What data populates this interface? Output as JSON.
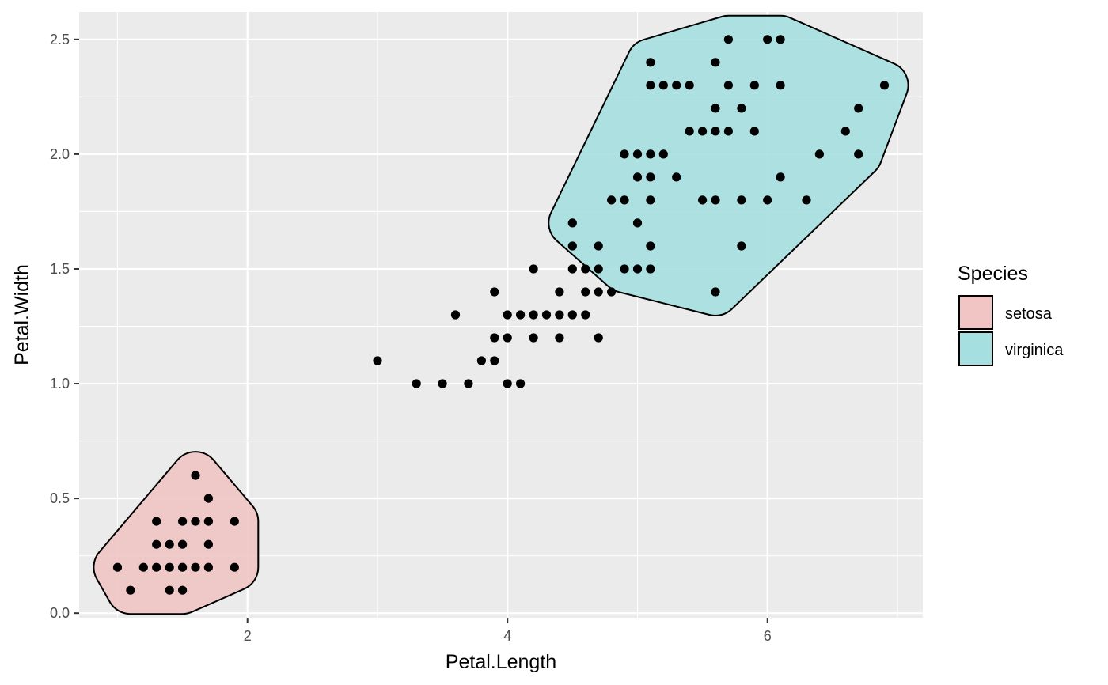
{
  "chart_data": {
    "type": "scatter",
    "title": "",
    "xlabel": "Petal.Length",
    "ylabel": "Petal.Width",
    "xlim": [
      0.705,
      7.195
    ],
    "ylim": [
      -0.02,
      2.62
    ],
    "x_ticks": [
      2,
      4,
      6
    ],
    "y_ticks": [
      0.0,
      0.5,
      1.0,
      1.5,
      2.0,
      2.5
    ],
    "x_tick_labels": [
      "2",
      "4",
      "6"
    ],
    "y_tick_labels": [
      "0.0",
      "0.5",
      "1.0",
      "1.5",
      "2.0",
      "2.5"
    ],
    "grid": true,
    "panel_background": "#ebebeb",
    "point_color": "#000000",
    "legend": {
      "title": "Species",
      "placement": "right",
      "items": [
        {
          "label": "setosa",
          "fill": "#f0c5c3"
        },
        {
          "label": "virginica",
          "fill": "#a6dfe0"
        }
      ]
    },
    "hulls": [
      {
        "name": "setosa",
        "fill": "#f0c5c3",
        "outline": [
          [
            1.0,
            0.2
          ],
          [
            1.1,
            0.1
          ],
          [
            1.5,
            0.1
          ],
          [
            1.9,
            0.2
          ],
          [
            1.9,
            0.4
          ],
          [
            1.6,
            0.6
          ],
          [
            1.3,
            0.4
          ]
        ]
      },
      {
        "name": "virginica",
        "fill": "#a6dfe0",
        "outline": [
          [
            4.5,
            1.7
          ],
          [
            4.9,
            1.5
          ],
          [
            5.6,
            1.4
          ],
          [
            6.7,
            2.0
          ],
          [
            6.9,
            2.3
          ],
          [
            6.1,
            2.5
          ],
          [
            5.7,
            2.5
          ],
          [
            5.1,
            2.4
          ]
        ]
      }
    ],
    "points": [
      {
        "x": 1.4,
        "y": 0.2
      },
      {
        "x": 1.3,
        "y": 0.2
      },
      {
        "x": 1.5,
        "y": 0.2
      },
      {
        "x": 1.7,
        "y": 0.4
      },
      {
        "x": 1.4,
        "y": 0.3
      },
      {
        "x": 1.5,
        "y": 0.1
      },
      {
        "x": 1.6,
        "y": 0.2
      },
      {
        "x": 1.4,
        "y": 0.1
      },
      {
        "x": 1.1,
        "y": 0.1
      },
      {
        "x": 1.2,
        "y": 0.2
      },
      {
        "x": 1.3,
        "y": 0.4
      },
      {
        "x": 1.7,
        "y": 0.3
      },
      {
        "x": 1.0,
        "y": 0.2
      },
      {
        "x": 1.7,
        "y": 0.5
      },
      {
        "x": 1.9,
        "y": 0.2
      },
      {
        "x": 1.6,
        "y": 0.4
      },
      {
        "x": 1.5,
        "y": 0.4
      },
      {
        "x": 1.3,
        "y": 0.3
      },
      {
        "x": 1.6,
        "y": 0.6
      },
      {
        "x": 1.9,
        "y": 0.4
      },
      {
        "x": 1.5,
        "y": 0.3
      },
      {
        "x": 1.7,
        "y": 0.2
      },
      {
        "x": 3.0,
        "y": 1.1
      },
      {
        "x": 3.3,
        "y": 1.0
      },
      {
        "x": 3.5,
        "y": 1.0
      },
      {
        "x": 3.6,
        "y": 1.3
      },
      {
        "x": 3.7,
        "y": 1.0
      },
      {
        "x": 3.8,
        "y": 1.1
      },
      {
        "x": 3.9,
        "y": 1.4
      },
      {
        "x": 3.9,
        "y": 1.2
      },
      {
        "x": 3.9,
        "y": 1.1
      },
      {
        "x": 4.0,
        "y": 1.3
      },
      {
        "x": 4.0,
        "y": 1.2
      },
      {
        "x": 4.0,
        "y": 1.0
      },
      {
        "x": 4.1,
        "y": 1.3
      },
      {
        "x": 4.1,
        "y": 1.0
      },
      {
        "x": 4.2,
        "y": 1.5
      },
      {
        "x": 4.2,
        "y": 1.3
      },
      {
        "x": 4.2,
        "y": 1.2
      },
      {
        "x": 4.3,
        "y": 1.3
      },
      {
        "x": 4.4,
        "y": 1.4
      },
      {
        "x": 4.4,
        "y": 1.3
      },
      {
        "x": 4.4,
        "y": 1.2
      },
      {
        "x": 4.5,
        "y": 1.5
      },
      {
        "x": 4.5,
        "y": 1.3
      },
      {
        "x": 4.5,
        "y": 1.7
      },
      {
        "x": 4.5,
        "y": 1.6
      },
      {
        "x": 4.6,
        "y": 1.5
      },
      {
        "x": 4.6,
        "y": 1.4
      },
      {
        "x": 4.6,
        "y": 1.3
      },
      {
        "x": 4.7,
        "y": 1.6
      },
      {
        "x": 4.7,
        "y": 1.5
      },
      {
        "x": 4.7,
        "y": 1.4
      },
      {
        "x": 4.7,
        "y": 1.2
      },
      {
        "x": 4.8,
        "y": 1.8
      },
      {
        "x": 4.8,
        "y": 1.4
      },
      {
        "x": 4.9,
        "y": 2.0
      },
      {
        "x": 4.9,
        "y": 1.8
      },
      {
        "x": 4.9,
        "y": 1.5
      },
      {
        "x": 5.0,
        "y": 2.0
      },
      {
        "x": 5.0,
        "y": 1.9
      },
      {
        "x": 5.0,
        "y": 1.7
      },
      {
        "x": 5.0,
        "y": 1.5
      },
      {
        "x": 5.1,
        "y": 2.4
      },
      {
        "x": 5.1,
        "y": 2.3
      },
      {
        "x": 5.1,
        "y": 2.0
      },
      {
        "x": 5.1,
        "y": 1.9
      },
      {
        "x": 5.1,
        "y": 1.8
      },
      {
        "x": 5.1,
        "y": 1.6
      },
      {
        "x": 5.1,
        "y": 1.5
      },
      {
        "x": 5.2,
        "y": 2.3
      },
      {
        "x": 5.2,
        "y": 2.0
      },
      {
        "x": 5.3,
        "y": 2.3
      },
      {
        "x": 5.3,
        "y": 1.9
      },
      {
        "x": 5.4,
        "y": 2.3
      },
      {
        "x": 5.4,
        "y": 2.1
      },
      {
        "x": 5.5,
        "y": 2.1
      },
      {
        "x": 5.5,
        "y": 1.8
      },
      {
        "x": 5.6,
        "y": 2.4
      },
      {
        "x": 5.6,
        "y": 2.2
      },
      {
        "x": 5.6,
        "y": 2.1
      },
      {
        "x": 5.6,
        "y": 1.8
      },
      {
        "x": 5.6,
        "y": 1.4
      },
      {
        "x": 5.7,
        "y": 2.5
      },
      {
        "x": 5.7,
        "y": 2.3
      },
      {
        "x": 5.7,
        "y": 2.1
      },
      {
        "x": 5.8,
        "y": 2.2
      },
      {
        "x": 5.8,
        "y": 1.8
      },
      {
        "x": 5.8,
        "y": 1.6
      },
      {
        "x": 5.9,
        "y": 2.3
      },
      {
        "x": 5.9,
        "y": 2.1
      },
      {
        "x": 6.0,
        "y": 2.5
      },
      {
        "x": 6.0,
        "y": 1.8
      },
      {
        "x": 6.1,
        "y": 2.5
      },
      {
        "x": 6.1,
        "y": 2.3
      },
      {
        "x": 6.1,
        "y": 1.9
      },
      {
        "x": 6.3,
        "y": 1.8
      },
      {
        "x": 6.4,
        "y": 2.0
      },
      {
        "x": 6.6,
        "y": 2.1
      },
      {
        "x": 6.7,
        "y": 2.2
      },
      {
        "x": 6.7,
        "y": 2.0
      },
      {
        "x": 6.9,
        "y": 2.3
      }
    ]
  }
}
